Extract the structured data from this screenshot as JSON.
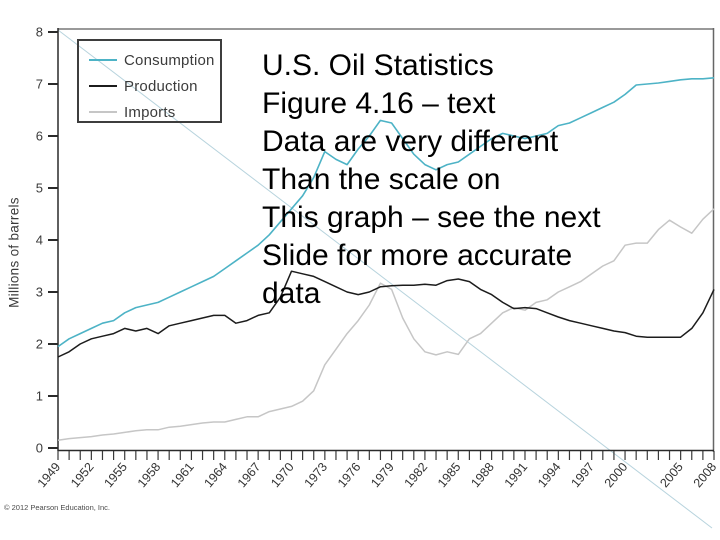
{
  "slide": {
    "overlay_lines": [
      "U.S. Oil Statistics",
      "Figure 4.16 – text",
      "Data are very different",
      "Than the scale on",
      "This graph – see the next",
      "Slide for more accurate",
      "data"
    ],
    "copyright": "© 2012 Pearson Education, Inc."
  },
  "chart_data": {
    "type": "line",
    "title": "",
    "xlabel": "",
    "ylabel": "Millions of barrels",
    "ylim": [
      0,
      8
    ],
    "yticks": [
      0,
      1,
      2,
      3,
      4,
      5,
      6,
      7,
      8
    ],
    "x_range": [
      1949,
      2008
    ],
    "xtick_labels": [
      1949,
      1952,
      1955,
      1958,
      1961,
      1964,
      1967,
      1970,
      1973,
      1976,
      1979,
      1982,
      1985,
      1988,
      1991,
      1994,
      1997,
      2000,
      2005,
      2008
    ],
    "grid": false,
    "legend_position": "top-left",
    "colors": {
      "consumption": "#4db3c6",
      "production": "#1c1c1c",
      "imports": "#c6c6c6",
      "diagonal_annotation": "#b7d3dd",
      "axis": "#2a2a2a",
      "plot_border_top": "#999999",
      "plot_border_right": "#666666"
    },
    "x": [
      1949,
      1950,
      1951,
      1952,
      1953,
      1954,
      1955,
      1956,
      1957,
      1958,
      1959,
      1960,
      1961,
      1962,
      1963,
      1964,
      1965,
      1966,
      1967,
      1968,
      1969,
      1970,
      1971,
      1972,
      1973,
      1974,
      1975,
      1976,
      1977,
      1978,
      1979,
      1980,
      1981,
      1982,
      1983,
      1984,
      1985,
      1986,
      1987,
      1988,
      1989,
      1990,
      1991,
      1992,
      1993,
      1994,
      1995,
      1996,
      1997,
      1998,
      1999,
      2000,
      2001,
      2002,
      2003,
      2004,
      2005,
      2006,
      2007,
      2008
    ],
    "series": [
      {
        "name": "Consumption",
        "color": "#4db3c6",
        "values": [
          1.95,
          2.1,
          2.2,
          2.3,
          2.4,
          2.45,
          2.6,
          2.7,
          2.75,
          2.8,
          2.9,
          3.0,
          3.1,
          3.2,
          3.3,
          3.45,
          3.6,
          3.75,
          3.9,
          4.1,
          4.35,
          4.6,
          4.85,
          5.2,
          5.7,
          5.55,
          5.45,
          5.75,
          6.0,
          6.3,
          6.25,
          5.95,
          5.65,
          5.45,
          5.35,
          5.45,
          5.5,
          5.65,
          5.8,
          5.95,
          6.05,
          6.0,
          5.95,
          6.0,
          6.05,
          6.2,
          6.25,
          6.35,
          6.45,
          6.55,
          6.65,
          6.8,
          6.98,
          7.0,
          7.02,
          7.05,
          7.08,
          7.1,
          7.1,
          7.12
        ]
      },
      {
        "name": "Production",
        "color": "#1c1c1c",
        "values": [
          1.75,
          1.85,
          2.0,
          2.1,
          2.15,
          2.2,
          2.3,
          2.25,
          2.3,
          2.2,
          2.35,
          2.4,
          2.45,
          2.5,
          2.55,
          2.55,
          2.4,
          2.45,
          2.55,
          2.6,
          2.9,
          3.4,
          3.35,
          3.3,
          3.2,
          3.1,
          3.0,
          2.95,
          3.0,
          3.1,
          3.12,
          3.13,
          3.13,
          3.15,
          3.13,
          3.22,
          3.25,
          3.2,
          3.05,
          2.95,
          2.8,
          2.68,
          2.7,
          2.68,
          2.6,
          2.52,
          2.45,
          2.4,
          2.35,
          2.3,
          2.25,
          2.22,
          2.15,
          2.13,
          2.13,
          2.13,
          2.13,
          2.3,
          2.6,
          3.05
        ]
      },
      {
        "name": "Imports",
        "color": "#c6c6c6",
        "values": [
          0.15,
          0.18,
          0.2,
          0.22,
          0.25,
          0.27,
          0.3,
          0.33,
          0.35,
          0.35,
          0.4,
          0.42,
          0.45,
          0.48,
          0.5,
          0.5,
          0.55,
          0.6,
          0.6,
          0.7,
          0.75,
          0.8,
          0.9,
          1.1,
          1.6,
          1.9,
          2.2,
          2.45,
          2.75,
          3.17,
          3.05,
          2.5,
          2.1,
          1.85,
          1.79,
          1.85,
          1.8,
          2.1,
          2.2,
          2.4,
          2.6,
          2.7,
          2.65,
          2.8,
          2.85,
          3.0,
          3.1,
          3.2,
          3.35,
          3.5,
          3.6,
          3.9,
          3.94,
          3.94,
          4.2,
          4.38,
          4.25,
          4.13,
          4.4,
          4.6
        ]
      }
    ]
  }
}
